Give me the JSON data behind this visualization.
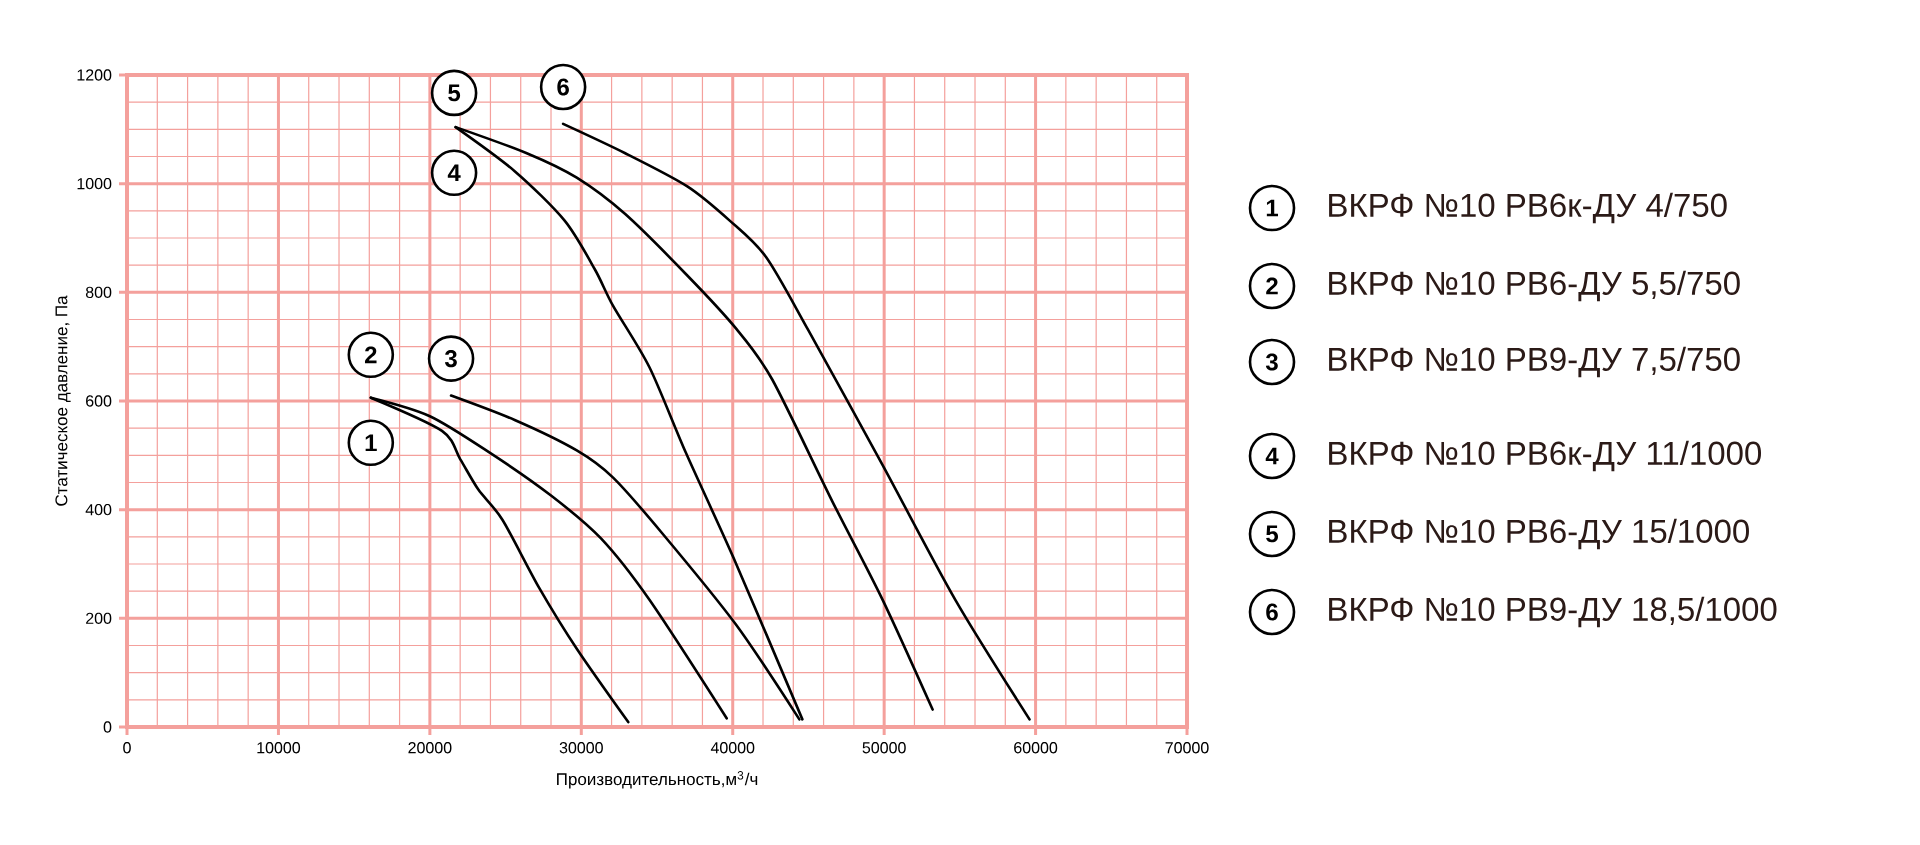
{
  "chart_data": {
    "type": "line",
    "xlabel": "Производительность,м$^{3}$/ч",
    "ylabel": "Статическое давление, Па",
    "xlim": [
      0,
      70000
    ],
    "ylim": [
      0,
      1200
    ],
    "xticks": [
      0,
      {
        "value": 2000,
        "label": null
      },
      {
        "value": 4000,
        "label": null
      },
      {
        "value": 6000,
        "label": null
      },
      {
        "value": 8000,
        "label": null
      },
      10000,
      {
        "value": 12000,
        "label": null
      },
      {
        "value": 14000,
        "label": null
      },
      {
        "value": 16000,
        "label": null
      },
      {
        "value": 18000,
        "label": null
      },
      20000,
      {
        "value": 22000,
        "label": null
      },
      {
        "value": 24000,
        "label": null
      },
      {
        "value": 26000,
        "label": null
      },
      {
        "value": 28000,
        "label": null
      },
      30000,
      {
        "value": 32000,
        "label": null
      },
      {
        "value": 34000,
        "label": null
      },
      {
        "value": 36000,
        "label": null
      },
      {
        "value": 38000,
        "label": null
      },
      40000,
      {
        "value": 42000,
        "label": null
      },
      {
        "value": 44000,
        "label": null
      },
      {
        "value": 46000,
        "label": null
      },
      {
        "value": 48000,
        "label": null
      },
      50000,
      {
        "value": 52000,
        "label": null
      },
      {
        "value": 54000,
        "label": null
      },
      {
        "value": 56000,
        "label": null
      },
      {
        "value": 58000,
        "label": null
      },
      60000,
      {
        "value": 62000,
        "label": null
      },
      {
        "value": 64000,
        "label": null
      },
      {
        "value": 66000,
        "label": null
      },
      {
        "value": 68000,
        "label": null
      },
      70000
    ],
    "yticks": [
      0,
      {
        "value": 50,
        "label": null
      },
      {
        "value": 100,
        "label": null
      },
      {
        "value": 150,
        "label": null
      },
      200,
      {
        "value": 250,
        "label": null
      },
      {
        "value": 300,
        "label": null
      },
      {
        "value": 350,
        "label": null
      },
      400,
      {
        "value": 450,
        "label": null
      },
      {
        "value": 500,
        "label": null
      },
      {
        "value": 550,
        "label": null
      },
      600,
      {
        "value": 650,
        "label": null
      },
      {
        "value": 700,
        "label": null
      },
      {
        "value": 750,
        "label": null
      },
      800,
      {
        "value": 850,
        "label": null
      },
      {
        "value": 900,
        "label": null
      },
      {
        "value": 950,
        "label": null
      },
      1000,
      {
        "value": 1050,
        "label": null
      },
      {
        "value": 1100,
        "label": null
      },
      {
        "value": 1150,
        "label": null
      },
      1200
    ],
    "grid": true,
    "legend": "right",
    "series": [
      {
        "name": "ВКРФ №10 РВ6к-ДУ 4/750",
        "color": "#000000",
        "x": [
          16100,
          20800,
          22000,
          23200,
          24800,
          27200,
          29700,
          33100
        ],
        "values": [
          606,
          545,
          493,
          437,
          381,
          257,
          144,
          9
        ]
      },
      {
        "name": "ВКРФ №10 РВ6-ДУ 5,5/750",
        "color": "#000000",
        "x": [
          16100,
          20000,
          24000,
          28000,
          31300,
          34500,
          39600
        ],
        "values": [
          606,
          572,
          504,
          426,
          347,
          234,
          16
        ]
      },
      {
        "name": "ВКРФ №10 РВ9-ДУ 7,5/750",
        "color": "#000000",
        "x": [
          21400,
          25600,
          29700,
          32100,
          35300,
          40200,
          44400
        ],
        "values": [
          610,
          565,
          509,
          459,
          358,
          189,
          14
        ]
      },
      {
        "name": "ВКРФ №10 РВ6к-ДУ 11/1000",
        "color": "#000000",
        "x": [
          21700,
          25600,
          28900,
          30900,
          32100,
          34500,
          36900,
          40200,
          44600
        ],
        "values": [
          1104,
          1023,
          932,
          842,
          775,
          662,
          505,
          302,
          14
        ]
      },
      {
        "name": "ВКРФ №10 РВ6-ДУ 15/1000",
        "color": "#000000",
        "x": [
          21700,
          26400,
          29700,
          32900,
          37000,
          40200,
          42600,
          46600,
          49900,
          53200
        ],
        "values": [
          1104,
          1056,
          1011,
          944,
          831,
          734,
          640,
          414,
          234,
          32
        ]
      },
      {
        "name": "ВКРФ №10 РВ9-ДУ 18,5/1000",
        "color": "#000000",
        "x": [
          28800,
          32900,
          37000,
          39800,
          42200,
          45000,
          49900,
          54700,
          59600
        ],
        "values": [
          1110,
          1056,
          995,
          932,
          865,
          730,
          482,
          234,
          14
        ]
      }
    ],
    "annotations": [
      {
        "text": "1",
        "x": 16100,
        "y": 523
      },
      {
        "text": "2",
        "x": 16100,
        "y": 685
      },
      {
        "text": "3",
        "x": 21400,
        "y": 678
      },
      {
        "text": "4",
        "x": 21600,
        "y": 1020
      },
      {
        "text": "5",
        "x": 21600,
        "y": 1167
      },
      {
        "text": "6",
        "x": 28800,
        "y": 1178
      }
    ]
  }
}
